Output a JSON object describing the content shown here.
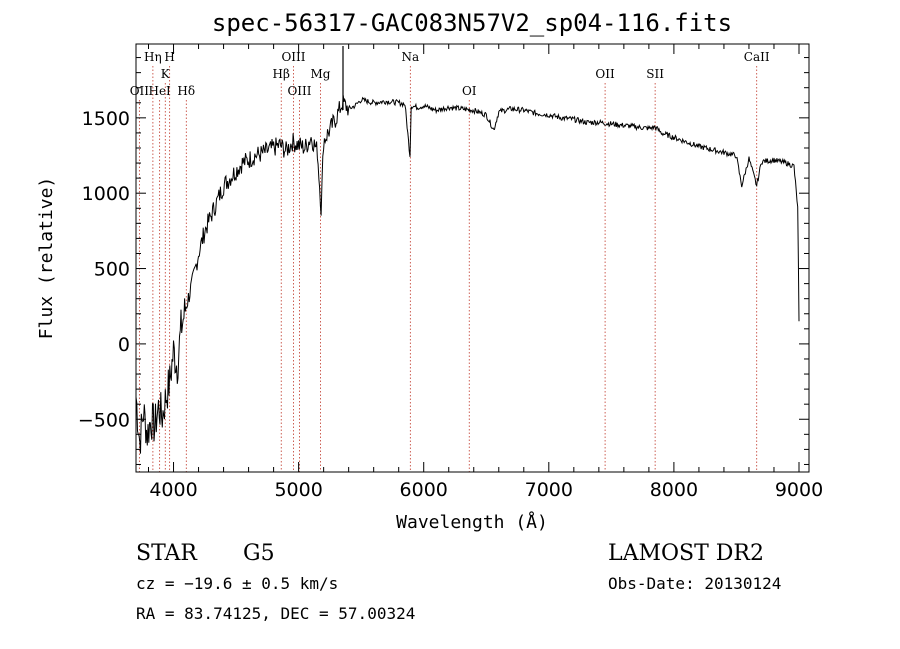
{
  "chart_data": {
    "type": "line",
    "title": "spec-56317-GAC083N57V2_sp04-116.fits",
    "xlabel": "Wavelength (Å)",
    "ylabel": "Flux (relative)",
    "xlim": [
      3700,
      9080
    ],
    "ylim": [
      -850,
      1990
    ],
    "x_ticks": [
      4000,
      5000,
      6000,
      7000,
      8000,
      9000
    ],
    "y_ticks": [
      -500,
      0,
      500,
      1000,
      1500
    ],
    "x_tick_labels": [
      "4000",
      "5000",
      "6000",
      "7000",
      "8000",
      "9000"
    ],
    "y_tick_labels": [
      "−500",
      "0",
      "500",
      "1000",
      "1500"
    ],
    "grid": false,
    "series": [
      {
        "x": [
          3700,
          3730,
          3760,
          3790,
          3820,
          3850,
          3880,
          3910,
          3940,
          3970,
          4000,
          4030,
          4060,
          4100,
          4150,
          4200,
          4250,
          4300,
          4350,
          4400,
          4450,
          4500,
          4550,
          4600,
          4650,
          4700,
          4750,
          4800,
          4850,
          4900,
          4950,
          5000,
          5050,
          5100,
          5150,
          5180,
          5200,
          5250,
          5300,
          5350,
          5400,
          5450,
          5500,
          5600,
          5700,
          5800,
          5850,
          5890,
          5900,
          5950,
          6000,
          6100,
          6200,
          6300,
          6400,
          6500,
          6560,
          6600,
          6700,
          6800,
          6900,
          7000,
          7100,
          7200,
          7300,
          7400,
          7500,
          7600,
          7700,
          7800,
          7850,
          7900,
          8000,
          8100,
          8200,
          8300,
          8400,
          8498,
          8542,
          8600,
          8662,
          8700,
          8800,
          8900,
          8960,
          8990,
          9000
        ],
        "y": [
          -350,
          -650,
          -450,
          -600,
          -500,
          -550,
          -420,
          -480,
          -350,
          -250,
          -50,
          -150,
          100,
          250,
          400,
          600,
          750,
          850,
          950,
          1050,
          1100,
          1150,
          1200,
          1220,
          1250,
          1260,
          1280,
          1300,
          1320,
          1280,
          1340,
          1320,
          1300,
          1370,
          1280,
          900,
          1350,
          1420,
          1500,
          1600,
          1560,
          1580,
          1620,
          1600,
          1610,
          1600,
          1590,
          1250,
          1580,
          1570,
          1580,
          1550,
          1570,
          1560,
          1550,
          1520,
          1420,
          1540,
          1560,
          1550,
          1530,
          1520,
          1500,
          1490,
          1470,
          1470,
          1460,
          1450,
          1440,
          1430,
          1440,
          1400,
          1370,
          1340,
          1310,
          1290,
          1270,
          1250,
          1050,
          1230,
          1050,
          1210,
          1220,
          1200,
          1180,
          900,
          150
        ]
      }
    ],
    "spectral_lines": [
      {
        "label": "OII",
        "wavelength": 3727,
        "row": 3
      },
      {
        "label": "Hη",
        "wavelength": 3835,
        "row": 1
      },
      {
        "label": "HeI",
        "wavelength": 3889,
        "row": 3
      },
      {
        "label": "K",
        "wavelength": 3934,
        "row": 2
      },
      {
        "label": "H",
        "wavelength": 3969,
        "row": 1
      },
      {
        "label": "Hδ",
        "wavelength": 4102,
        "row": 3
      },
      {
        "label": "Hβ",
        "wavelength": 4861,
        "row": 2
      },
      {
        "label": "OIII",
        "wavelength": 4959,
        "row": 1
      },
      {
        "label": "OIII",
        "wavelength": 5007,
        "row": 3
      },
      {
        "label": "Mg",
        "wavelength": 5175,
        "row": 2
      },
      {
        "label": "Na",
        "wavelength": 5893,
        "row": 1
      },
      {
        "label": "OI",
        "wavelength": 6364,
        "row": 3
      },
      {
        "label": "OII",
        "wavelength": 7450,
        "row": 2
      },
      {
        "label": "SII",
        "wavelength": 7850,
        "row": 2
      },
      {
        "label": "CaII",
        "wavelength": 8662,
        "row": 1
      }
    ]
  },
  "info": {
    "object_class": "STAR",
    "subclass": "G5",
    "survey": "LAMOST DR2",
    "redshift": "cz = −19.6 ± 0.5 km/s",
    "obs_date": "Obs-Date: 20130124",
    "coords": "RA =  83.74125, DEC =  57.00324"
  },
  "colors": {
    "spectrum": "#000000",
    "line_markers": "#c0392b",
    "axes": "#000000"
  }
}
